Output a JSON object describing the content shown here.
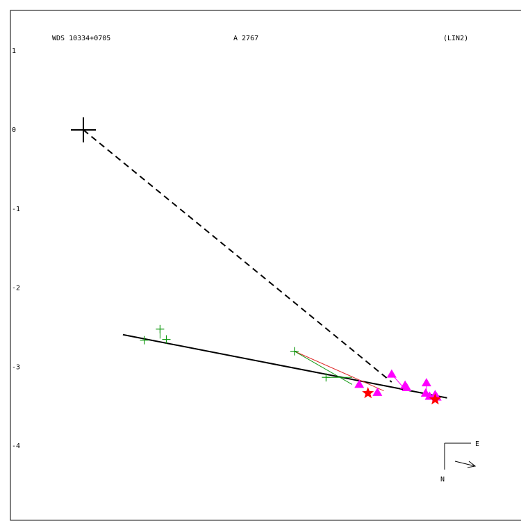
{
  "header": {
    "left": "WDS 10334+0705",
    "center": "A  2767",
    "right": "(LIN2)"
  },
  "compass": {
    "east": "E",
    "north": "N"
  },
  "colors": {
    "frame": "#000000",
    "green_obs": "#119911",
    "magenta_obs": "#ff00ff",
    "red_star": "#ff0000",
    "red_line": "#dd2222"
  },
  "chart_data": {
    "type": "scatter",
    "title": "",
    "xlabel": "",
    "ylabel": "",
    "ylim": [
      -4.9,
      1.5
    ],
    "xlim": [
      -0.9,
      5.5
    ],
    "y_ticks": [
      "1",
      "0",
      "-1",
      "-2",
      "-3",
      "-4"
    ],
    "y_tick_values": [
      1,
      0,
      -1,
      -2,
      -3,
      -4
    ],
    "primary": {
      "x": 0,
      "y": 0,
      "marker": "large-cross"
    },
    "fit_line": {
      "x": [
        0.5,
        4.6
      ],
      "y": [
        -2.59,
        -3.39
      ]
    },
    "dashed_line": {
      "x": [
        0,
        3.9
      ],
      "y": [
        0,
        -3.19
      ]
    },
    "series": [
      {
        "marker": "plus",
        "color": "#119911",
        "points": [
          {
            "x": 0.77,
            "y": -2.66,
            "fx": 0.78,
            "fy": -2.65
          },
          {
            "x": 0.97,
            "y": -2.52,
            "fx": 0.97,
            "fy": -2.64
          },
          {
            "x": 1.05,
            "y": -2.65,
            "fx": 1.05,
            "fy": -2.66
          },
          {
            "x": 2.67,
            "y": -2.8,
            "fx": 3.4,
            "fy": -3.22
          },
          {
            "x": 3.07,
            "y": -3.13,
            "fx": 3.4,
            "fy": -3.13
          }
        ]
      },
      {
        "marker": "triangle",
        "color": "#ff00ff",
        "points": [
          {
            "x": 3.49,
            "y": -3.22,
            "fx": 3.49,
            "fy": -3.24
          },
          {
            "x": 3.72,
            "y": -3.32,
            "fx": 3.72,
            "fy": -3.3
          },
          {
            "x": 3.9,
            "y": -3.09,
            "fx": 4.05,
            "fy": -3.26
          },
          {
            "x": 4.07,
            "y": -3.23,
            "fx": 4.07,
            "fy": -3.26
          },
          {
            "x": 4.09,
            "y": -3.26,
            "fx": 4.09,
            "fy": -3.27
          },
          {
            "x": 4.34,
            "y": -3.2,
            "fx": 4.34,
            "fy": -3.3
          },
          {
            "x": 4.33,
            "y": -3.33,
            "fx": 4.33,
            "fy": -3.32
          },
          {
            "x": 4.38,
            "y": -3.37,
            "fx": 4.38,
            "fy": -3.35
          },
          {
            "x": 4.45,
            "y": -3.35,
            "fx": 4.45,
            "fy": -3.36
          },
          {
            "x": 4.47,
            "y": -3.38,
            "fx": 4.47,
            "fy": -3.37
          }
        ]
      },
      {
        "marker": "star",
        "color": "#ff0000",
        "points": [
          {
            "x": 3.6,
            "y": -3.33
          },
          {
            "x": 4.45,
            "y": -3.41
          }
        ]
      }
    ],
    "red_trace": {
      "x": [
        2.67,
        3.8
      ],
      "y": [
        -2.8,
        -3.3
      ]
    }
  }
}
